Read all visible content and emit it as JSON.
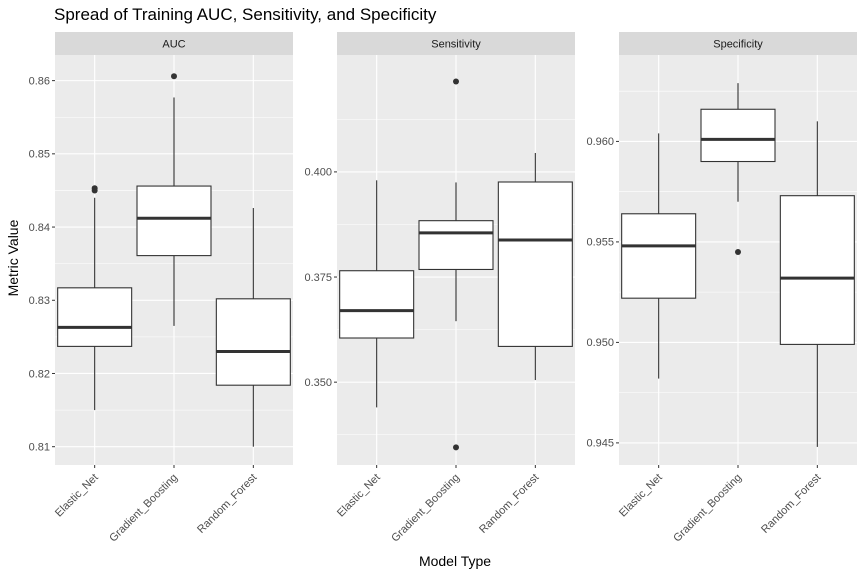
{
  "chart_data": {
    "type": "boxplot",
    "title": "Spread of Training AUC, Sensitivity, and Specificity",
    "xlabel": "Model Type",
    "ylabel": "Metric Value",
    "categories": [
      "Elastic_Net",
      "Gradient_Boosting",
      "Random_Forest"
    ],
    "colors": {
      "panel_bg": "#ebebeb",
      "grid_major": "#ffffff",
      "strip_bg": "#d9d9d9",
      "box_fill": "#ffffff",
      "box_line": "#333333"
    },
    "panels": [
      {
        "facet": "AUC",
        "ylim": [
          0.8075,
          0.8635
        ],
        "ticks": [
          0.81,
          0.82,
          0.83,
          0.84,
          0.85,
          0.86
        ],
        "tick_labels": [
          "0.81",
          "0.82",
          "0.83",
          "0.84",
          "0.85",
          "0.86"
        ],
        "boxes": [
          {
            "category": "Elastic_Net",
            "whisker_low": 0.815,
            "q1": 0.8237,
            "median": 0.8263,
            "q3": 0.8317,
            "whisker_high": 0.844,
            "outliers": [
              0.845,
              0.8453
            ]
          },
          {
            "category": "Gradient_Boosting",
            "whisker_low": 0.8265,
            "q1": 0.8361,
            "median": 0.8412,
            "q3": 0.8456,
            "whisker_high": 0.8577,
            "outliers": [
              0.8606
            ]
          },
          {
            "category": "Random_Forest",
            "whisker_low": 0.81,
            "q1": 0.8184,
            "median": 0.823,
            "q3": 0.8302,
            "whisker_high": 0.8426,
            "outliers": []
          }
        ]
      },
      {
        "facet": "Sensitivity",
        "ylim": [
          0.3303,
          0.4278
        ],
        "ticks": [
          0.35,
          0.375,
          0.4
        ],
        "tick_labels": [
          "0.350",
          "0.375",
          "0.400"
        ],
        "boxes": [
          {
            "category": "Elastic_Net",
            "whisker_low": 0.344,
            "q1": 0.3605,
            "median": 0.367,
            "q3": 0.3765,
            "whisker_high": 0.398,
            "outliers": []
          },
          {
            "category": "Gradient_Boosting",
            "whisker_low": 0.3645,
            "q1": 0.3768,
            "median": 0.3855,
            "q3": 0.3884,
            "whisker_high": 0.3975,
            "outliers": [
              0.4215,
              0.3345
            ]
          },
          {
            "category": "Random_Forest",
            "whisker_low": 0.3505,
            "q1": 0.3585,
            "median": 0.3838,
            "q3": 0.3976,
            "whisker_high": 0.4045,
            "outliers": []
          }
        ]
      },
      {
        "facet": "Specificity",
        "ylim": [
          0.9439,
          0.9643
        ],
        "ticks": [
          0.945,
          0.95,
          0.955,
          0.96
        ],
        "tick_labels": [
          "0.945",
          "0.950",
          "0.955",
          "0.960"
        ],
        "boxes": [
          {
            "category": "Elastic_Net",
            "whisker_low": 0.9482,
            "q1": 0.9522,
            "median": 0.9548,
            "q3": 0.9564,
            "whisker_high": 0.9604,
            "outliers": []
          },
          {
            "category": "Gradient_Boosting",
            "whisker_low": 0.957,
            "q1": 0.959,
            "median": 0.9601,
            "q3": 0.9616,
            "whisker_high": 0.9629,
            "outliers": [
              0.9545
            ]
          },
          {
            "category": "Random_Forest",
            "whisker_low": 0.9448,
            "q1": 0.9499,
            "median": 0.9532,
            "q3": 0.9573,
            "whisker_high": 0.961,
            "outliers": []
          }
        ]
      }
    ]
  }
}
